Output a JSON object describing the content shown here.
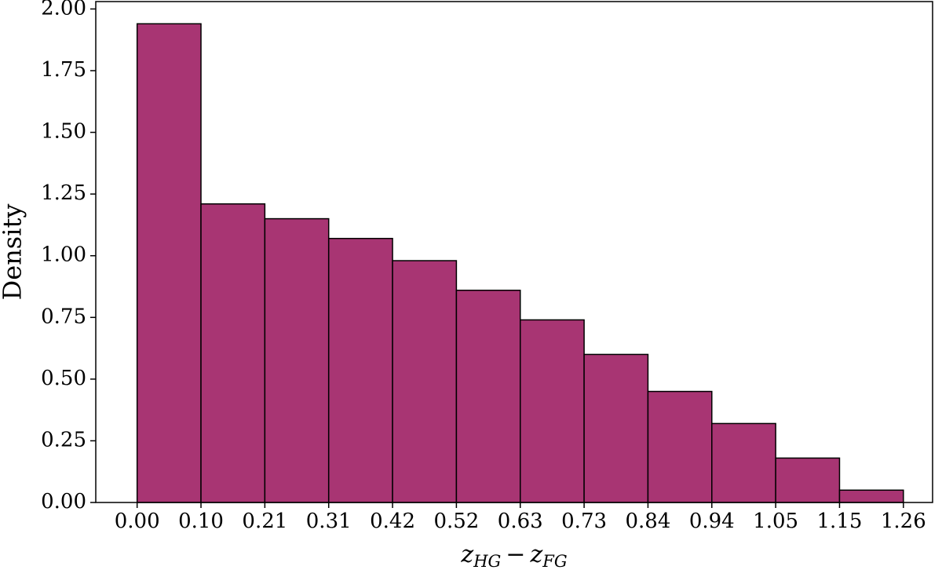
{
  "chart_data": {
    "type": "histogram",
    "ylabel": "Density",
    "xlabel": {
      "var1": "z",
      "sub1": "HG",
      "op": "−",
      "var2": "z",
      "sub2": "FG"
    },
    "bins": [
      0,
      0.105,
      0.21,
      0.315,
      0.42,
      0.525,
      0.63,
      0.735,
      0.84,
      0.945,
      1.05,
      1.155,
      1.26
    ],
    "values": [
      1.94,
      1.21,
      1.15,
      1.07,
      0.98,
      0.86,
      0.74,
      0.6,
      0.45,
      0.32,
      0.18,
      0.05
    ],
    "color": "#a83573",
    "edgecolor": "#000000",
    "xlim": [
      -0.068,
      1.308
    ],
    "ylim": [
      0,
      2.03
    ],
    "xticks": [
      {
        "value": 0,
        "label": "0.00"
      },
      {
        "value": 0.105,
        "label": "0.10"
      },
      {
        "value": 0.21,
        "label": "0.21"
      },
      {
        "value": 0.315,
        "label": "0.31"
      },
      {
        "value": 0.42,
        "label": "0.42"
      },
      {
        "value": 0.525,
        "label": "0.52"
      },
      {
        "value": 0.63,
        "label": "0.63"
      },
      {
        "value": 0.735,
        "label": "0.73"
      },
      {
        "value": 0.84,
        "label": "0.84"
      },
      {
        "value": 0.945,
        "label": "0.94"
      },
      {
        "value": 1.05,
        "label": "1.05"
      },
      {
        "value": 1.155,
        "label": "1.15"
      },
      {
        "value": 1.26,
        "label": "1.26"
      }
    ],
    "yticks": [
      {
        "value": 0,
        "label": "0.00"
      },
      {
        "value": 0.25,
        "label": "0.25"
      },
      {
        "value": 0.5,
        "label": "0.50"
      },
      {
        "value": 0.75,
        "label": "0.75"
      },
      {
        "value": 1,
        "label": "1.00"
      },
      {
        "value": 1.25,
        "label": "1.25"
      },
      {
        "value": 1.5,
        "label": "1.50"
      },
      {
        "value": 1.75,
        "label": "1.75"
      },
      {
        "value": 2,
        "label": "2.00"
      }
    ]
  }
}
